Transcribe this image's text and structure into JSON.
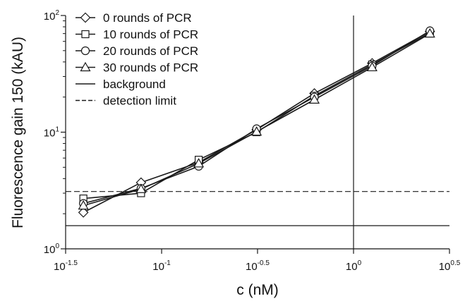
{
  "chart_data": {
    "type": "line",
    "xlabel": "c (nM)",
    "ylabel": "Fluorescence gain 150 (kAU)",
    "xscale": "log",
    "yscale": "log",
    "xlim": [
      0.0316,
      3.162
    ],
    "ylim": [
      1,
      100
    ],
    "x_ticks": [
      {
        "base": "10",
        "exp": "-1.5",
        "value": 0.0316
      },
      {
        "base": "10",
        "exp": "-1",
        "value": 0.1
      },
      {
        "base": "10",
        "exp": "-0.5",
        "value": 0.316
      },
      {
        "base": "10",
        "exp": "0",
        "value": 1
      },
      {
        "base": "10",
        "exp": "0.5",
        "value": 3.162
      }
    ],
    "y_ticks": [
      {
        "base": "10",
        "exp": "0",
        "value": 1
      },
      {
        "base": "10",
        "exp": "1",
        "value": 10
      },
      {
        "base": "10",
        "exp": "2",
        "value": 100
      }
    ],
    "x": [
      0.0391,
      0.0781,
      0.156,
      0.3125,
      0.625,
      1.25,
      2.5
    ],
    "series": [
      {
        "name": "0 rounds of PCR",
        "marker": "diamond",
        "values": [
          2.05,
          3.7,
          5.5,
          10.5,
          21.5,
          39,
          73
        ]
      },
      {
        "name": "10 rounds of PCR",
        "marker": "square",
        "values": [
          2.7,
          3.0,
          5.8,
          10.0,
          20.5,
          38,
          71
        ]
      },
      {
        "name": "20 rounds of PCR",
        "marker": "circle",
        "values": [
          2.45,
          3.3,
          5.1,
          10.7,
          20.0,
          37,
          74
        ]
      },
      {
        "name": "30 rounds of PCR",
        "marker": "triangle",
        "values": [
          2.35,
          3.25,
          5.4,
          10.1,
          19.0,
          36,
          70
        ]
      }
    ],
    "reference_lines": [
      {
        "name": "background",
        "axis": "y",
        "value": 1.58,
        "style": "solid"
      },
      {
        "name": "detection limit",
        "axis": "y",
        "value": 3.1,
        "style": "dashed"
      },
      {
        "name": "",
        "axis": "x",
        "value": 1,
        "style": "solid"
      }
    ],
    "legend": {
      "position": "top-left",
      "entries": [
        {
          "label": "0 rounds of PCR",
          "marker": "diamond",
          "line": "solid"
        },
        {
          "label": "10 rounds of PCR",
          "marker": "square",
          "line": "solid"
        },
        {
          "label": "20 rounds of PCR",
          "marker": "circle",
          "line": "solid"
        },
        {
          "label": "30 rounds of PCR",
          "marker": "triangle",
          "line": "solid"
        },
        {
          "label": "background",
          "marker": "none",
          "line": "solid"
        },
        {
          "label": "detection limit",
          "marker": "none",
          "line": "dashed"
        }
      ]
    },
    "grid": false,
    "colors": {
      "line": "#1a1a1a",
      "marker_fill": "#ffffff"
    }
  }
}
